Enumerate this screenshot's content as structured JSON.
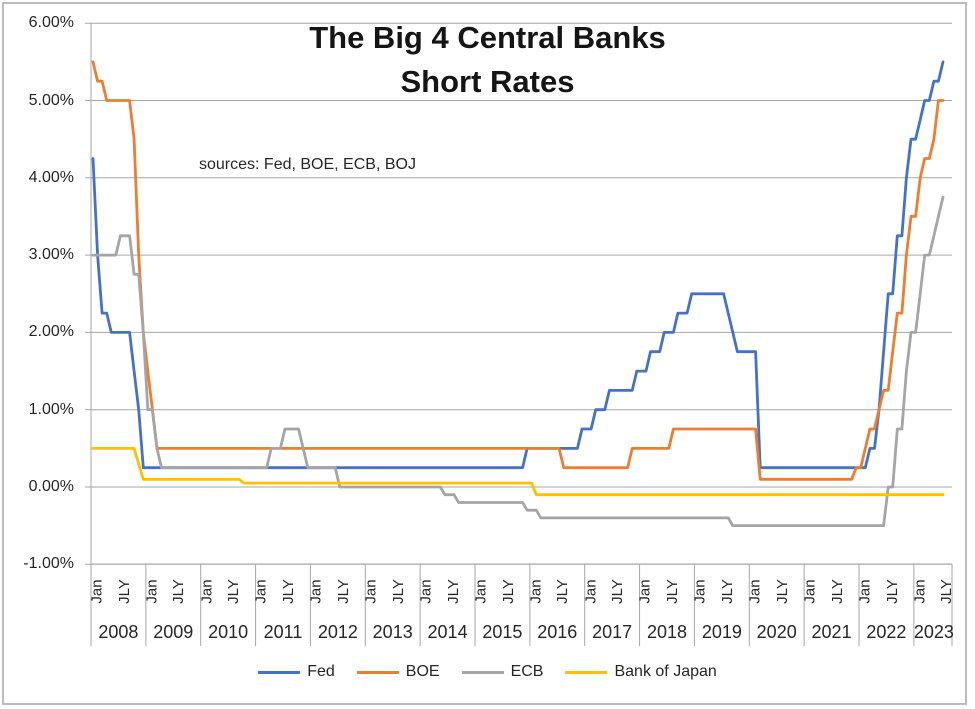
{
  "chart_data": {
    "type": "line",
    "title": "The Big 4 Central Banks",
    "subtitle": "Short Rates",
    "annotation": "sources: Fed, BOE, ECB, BOJ",
    "grid": true,
    "grid_color": "#a6a6a6",
    "frame_color": "#bcbcbc",
    "text_color": "#262626",
    "y_axis": {
      "max": 6,
      "min": -1,
      "step": 1,
      "tick_labels": [
        "6.00%",
        "5.00%",
        "4.00%",
        "3.00%",
        "2.00%",
        "1.00%",
        "0.00%",
        "-1.00%"
      ]
    },
    "x_axis": {
      "start": "2008-01",
      "end": "2023-07",
      "month_tick_labels": [
        "Jan",
        "JLY"
      ],
      "year_labels": [
        "2008",
        "2009",
        "2010",
        "2011",
        "2012",
        "2013",
        "2014",
        "2015",
        "2016",
        "2017",
        "2018",
        "2019",
        "2020",
        "2021",
        "2022",
        "2023"
      ]
    },
    "legend": {
      "position": "bottom"
    },
    "series": [
      {
        "name": "Fed",
        "color": "#4472C4",
        "rate_changes": [
          [
            "2008-01",
            4.25
          ],
          [
            "2008-02",
            3.0
          ],
          [
            "2008-03",
            2.25
          ],
          [
            "2008-05",
            2.0
          ],
          [
            "2008-10",
            1.5
          ],
          [
            "2008-11",
            1.0
          ],
          [
            "2008-12",
            0.25
          ],
          [
            "2015-12",
            0.5
          ],
          [
            "2016-12",
            0.75
          ],
          [
            "2017-03",
            1.0
          ],
          [
            "2017-06",
            1.25
          ],
          [
            "2017-12",
            1.5
          ],
          [
            "2018-03",
            1.75
          ],
          [
            "2018-06",
            2.0
          ],
          [
            "2018-09",
            2.25
          ],
          [
            "2018-12",
            2.5
          ],
          [
            "2019-08",
            2.25
          ],
          [
            "2019-09",
            2.0
          ],
          [
            "2019-10",
            1.75
          ],
          [
            "2020-03",
            0.25
          ],
          [
            "2022-03",
            0.5
          ],
          [
            "2022-05",
            1.0
          ],
          [
            "2022-06",
            1.75
          ],
          [
            "2022-07",
            2.5
          ],
          [
            "2022-09",
            3.25
          ],
          [
            "2022-11",
            4.0
          ],
          [
            "2022-12",
            4.5
          ],
          [
            "2023-02",
            4.75
          ],
          [
            "2023-03",
            5.0
          ],
          [
            "2023-05",
            5.25
          ],
          [
            "2023-07",
            5.5
          ]
        ]
      },
      {
        "name": "BOE",
        "color": "#ED7D31",
        "rate_changes": [
          [
            "2008-01",
            5.5
          ],
          [
            "2008-02",
            5.25
          ],
          [
            "2008-04",
            5.0
          ],
          [
            "2008-10",
            4.5
          ],
          [
            "2008-11",
            3.0
          ],
          [
            "2008-12",
            2.0
          ],
          [
            "2009-01",
            1.5
          ],
          [
            "2009-02",
            1.0
          ],
          [
            "2009-03",
            0.5
          ],
          [
            "2016-08",
            0.25
          ],
          [
            "2017-11",
            0.5
          ],
          [
            "2018-08",
            0.75
          ],
          [
            "2020-03",
            0.1
          ],
          [
            "2021-12",
            0.25
          ],
          [
            "2022-02",
            0.5
          ],
          [
            "2022-03",
            0.75
          ],
          [
            "2022-05",
            1.0
          ],
          [
            "2022-06",
            1.25
          ],
          [
            "2022-08",
            1.75
          ],
          [
            "2022-09",
            2.25
          ],
          [
            "2022-11",
            3.0
          ],
          [
            "2022-12",
            3.5
          ],
          [
            "2023-02",
            4.0
          ],
          [
            "2023-03",
            4.25
          ],
          [
            "2023-05",
            4.5
          ],
          [
            "2023-06",
            5.0
          ]
        ]
      },
      {
        "name": "ECB",
        "color": "#A5A5A5",
        "rate_changes": [
          [
            "2008-01",
            3.0
          ],
          [
            "2008-07",
            3.25
          ],
          [
            "2008-10",
            2.75
          ],
          [
            "2008-12",
            2.0
          ],
          [
            "2009-01",
            1.0
          ],
          [
            "2009-03",
            0.5
          ],
          [
            "2009-04",
            0.25
          ],
          [
            "2011-04",
            0.5
          ],
          [
            "2011-07",
            0.75
          ],
          [
            "2011-11",
            0.5
          ],
          [
            "2011-12",
            0.25
          ],
          [
            "2012-07",
            0.0
          ],
          [
            "2014-06",
            -0.1
          ],
          [
            "2014-09",
            -0.2
          ],
          [
            "2015-12",
            -0.3
          ],
          [
            "2016-03",
            -0.4
          ],
          [
            "2019-09",
            -0.5
          ],
          [
            "2022-07",
            0.0
          ],
          [
            "2022-09",
            0.75
          ],
          [
            "2022-11",
            1.5
          ],
          [
            "2022-12",
            2.0
          ],
          [
            "2023-02",
            2.5
          ],
          [
            "2023-03",
            3.0
          ],
          [
            "2023-05",
            3.25
          ],
          [
            "2023-06",
            3.5
          ],
          [
            "2023-07",
            3.75
          ]
        ]
      },
      {
        "name": "Bank of Japan",
        "color": "#FFC000",
        "rate_changes": [
          [
            "2008-01",
            0.5
          ],
          [
            "2008-11",
            0.3
          ],
          [
            "2008-12",
            0.1
          ],
          [
            "2010-10",
            0.05
          ],
          [
            "2016-02",
            -0.1
          ]
        ]
      }
    ]
  }
}
